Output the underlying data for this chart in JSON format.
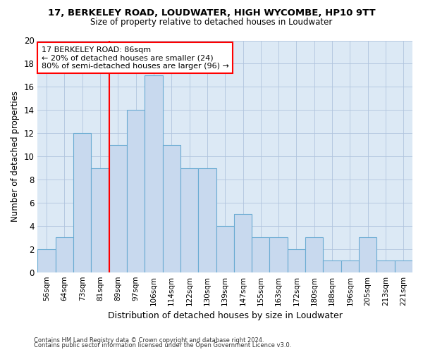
{
  "title": "17, BERKELEY ROAD, LOUDWATER, HIGH WYCOMBE, HP10 9TT",
  "subtitle": "Size of property relative to detached houses in Loudwater",
  "xlabel": "Distribution of detached houses by size in Loudwater",
  "ylabel": "Number of detached properties",
  "categories": [
    "56sqm",
    "64sqm",
    "73sqm",
    "81sqm",
    "89sqm",
    "97sqm",
    "106sqm",
    "114sqm",
    "122sqm",
    "130sqm",
    "139sqm",
    "147sqm",
    "155sqm",
    "163sqm",
    "172sqm",
    "180sqm",
    "188sqm",
    "196sqm",
    "205sqm",
    "213sqm",
    "221sqm"
  ],
  "values": [
    2,
    3,
    12,
    9,
    11,
    14,
    17,
    11,
    9,
    9,
    4,
    5,
    3,
    3,
    2,
    3,
    1,
    1,
    3,
    1,
    1
  ],
  "bar_color": "#c8d9ee",
  "bar_edgecolor": "#6aabd2",
  "bg_color": "#dce9f5",
  "fig_bg_color": "#ffffff",
  "grid_color": "#b0c4de",
  "ylim": [
    0,
    20
  ],
  "yticks": [
    0,
    2,
    4,
    6,
    8,
    10,
    12,
    14,
    16,
    18,
    20
  ],
  "vline_x": 3.5,
  "property_label": "17 BERKELEY ROAD: 86sqm",
  "annotation_line1": "← 20% of detached houses are smaller (24)",
  "annotation_line2": "80% of semi-detached houses are larger (96) →",
  "footer1": "Contains HM Land Registry data © Crown copyright and database right 2024.",
  "footer2": "Contains public sector information licensed under the Open Government Licence v3.0."
}
